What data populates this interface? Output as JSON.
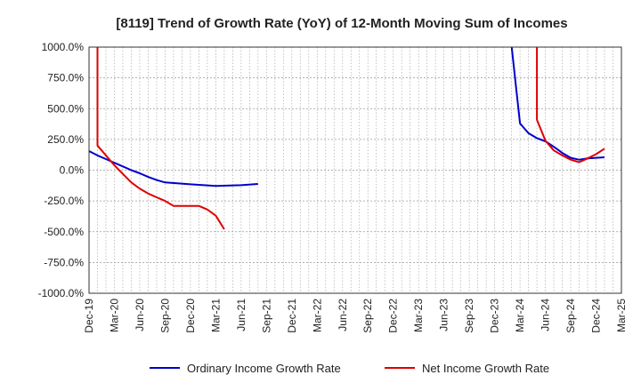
{
  "chart_data": {
    "type": "line",
    "title": "[8119]  Trend of Growth Rate (YoY) of 12-Month Moving Sum of Incomes",
    "xlabel": "",
    "ylabel": "",
    "x_ticks": [
      "Dec-19",
      "Mar-20",
      "Jun-20",
      "Sep-20",
      "Dec-20",
      "Mar-21",
      "Jun-21",
      "Sep-21",
      "Dec-21",
      "Mar-22",
      "Jun-22",
      "Sep-22",
      "Dec-22",
      "Mar-23",
      "Jun-23",
      "Sep-23",
      "Dec-23",
      "Mar-24",
      "Jun-24",
      "Sep-24",
      "Dec-24",
      "Mar-25"
    ],
    "y_ticks": [
      "1000.0%",
      "750.0%",
      "500.0%",
      "250.0%",
      "0.0%",
      "-250.0%",
      "-500.0%",
      "-750.0%",
      "-1000.0%"
    ],
    "ylim": [
      -1000,
      1000
    ],
    "grid": true,
    "legend_position": "bottom",
    "series": [
      {
        "name": "Ordinary Income Growth Rate",
        "color": "#0000cc",
        "points": [
          [
            "Dec-19",
            155
          ],
          [
            "Jan-20",
            120
          ],
          [
            "Feb-20",
            90
          ],
          [
            "Mar-20",
            60
          ],
          [
            "Apr-20",
            30
          ],
          [
            "May-20",
            0
          ],
          [
            "Jun-20",
            -25
          ],
          [
            "Jul-20",
            -55
          ],
          [
            "Aug-20",
            -80
          ],
          [
            "Sep-20",
            -100
          ],
          [
            "Dec-20",
            -115
          ],
          [
            "Mar-21",
            -128
          ],
          [
            "Jun-21",
            -122
          ],
          [
            "Aug-21",
            -112
          ],
          [
            "Feb-24",
            1010
          ],
          [
            "Mar-24",
            380
          ],
          [
            "Apr-24",
            300
          ],
          [
            "May-24",
            260
          ],
          [
            "Jun-24",
            235
          ],
          [
            "Jul-24",
            190
          ],
          [
            "Aug-24",
            140
          ],
          [
            "Sep-24",
            100
          ],
          [
            "Oct-24",
            85
          ],
          [
            "Nov-24",
            95
          ],
          [
            "Dec-24",
            100
          ],
          [
            "Jan-25",
            105
          ]
        ]
      },
      {
        "name": "Net Income Growth Rate",
        "color": "#dd0000",
        "points": [
          [
            "Jan-20",
            1010
          ],
          [
            "Jan-20",
            200
          ],
          [
            "Mar-20",
            40
          ],
          [
            "Apr-20",
            -30
          ],
          [
            "May-20",
            -100
          ],
          [
            "Jun-20",
            -150
          ],
          [
            "Jul-20",
            -190
          ],
          [
            "Aug-20",
            -220
          ],
          [
            "Sep-20",
            -250
          ],
          [
            "Oct-20",
            -290
          ],
          [
            "Jan-21",
            -290
          ],
          [
            "Feb-21",
            -320
          ],
          [
            "Mar-21",
            -370
          ],
          [
            "Apr-21",
            -480
          ],
          [
            "May-24",
            1010
          ],
          [
            "May-24",
            410
          ],
          [
            "Jun-24",
            240
          ],
          [
            "Jul-24",
            160
          ],
          [
            "Aug-24",
            120
          ],
          [
            "Sep-24",
            85
          ],
          [
            "Oct-24",
            65
          ],
          [
            "Nov-24",
            95
          ],
          [
            "Dec-24",
            130
          ],
          [
            "Jan-25",
            175
          ]
        ]
      }
    ]
  }
}
